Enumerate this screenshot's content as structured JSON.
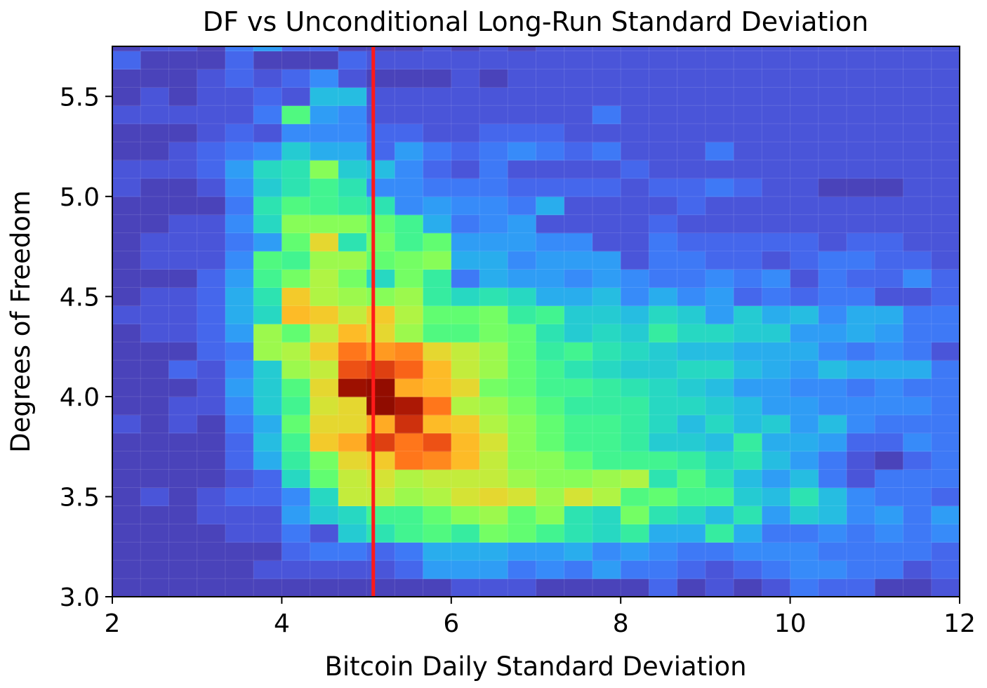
{
  "chart_data": {
    "type": "heatmap",
    "title": "DF vs Unconditional Long-Run Standard Deviation",
    "xlabel": "Bitcoin Daily Standard Deviation",
    "ylabel": "Degrees of Freedom",
    "xlim": [
      2,
      12
    ],
    "ylim": [
      3.0,
      5.75
    ],
    "x_bins": {
      "start": 2,
      "width": 0.333333,
      "count": 30
    },
    "y_bins": {
      "start": 3.0,
      "width": 0.090909,
      "count": 31
    },
    "xticks": [
      "2",
      "4",
      "6",
      "8",
      "10",
      "12"
    ],
    "yticks": [
      "3.0",
      "3.5",
      "4.0",
      "4.5",
      "5.0",
      "5.5"
    ],
    "reference_line": {
      "x": 5.08,
      "color": "#ff1a1a"
    },
    "colormap": "turbo",
    "grid": true,
    "density": [
      [
        0,
        0,
        0,
        0,
        0,
        0,
        0,
        0,
        0,
        0,
        0,
        0,
        1,
        1,
        1,
        0,
        0,
        0,
        0,
        2,
        0,
        1,
        0,
        1,
        3,
        2,
        2,
        0,
        0,
        1
      ],
      [
        0,
        0,
        0,
        0,
        0,
        1,
        1,
        1,
        1,
        1,
        2,
        5,
        5,
        5,
        3,
        4,
        3,
        5,
        3,
        3,
        2,
        1,
        2,
        3,
        4,
        4,
        3,
        3,
        1,
        2
      ],
      [
        0,
        0,
        0,
        0,
        0,
        0,
        2,
        3,
        3,
        2,
        3,
        6,
        6,
        6,
        5,
        5,
        6,
        4,
        5,
        4,
        3,
        3,
        4,
        4,
        4,
        3,
        3,
        3,
        3,
        2
      ],
      [
        0,
        0,
        0,
        0,
        1,
        1,
        3,
        1,
        8,
        10,
        12,
        13,
        11,
        15,
        14,
        12,
        10,
        9,
        11,
        6,
        6,
        11,
        6,
        3,
        3,
        4,
        3,
        4,
        3,
        4
      ],
      [
        0,
        0,
        0,
        1,
        1,
        1,
        5,
        8,
        9,
        12,
        12,
        14,
        16,
        17,
        14,
        16,
        10,
        9,
        15,
        10,
        9,
        7,
        10,
        5,
        8,
        7,
        4,
        5,
        3,
        5
      ],
      [
        0,
        1,
        0,
        1,
        2,
        2,
        4,
        9,
        19,
        19,
        17,
        18,
        20,
        21,
        20,
        17,
        20,
        18,
        13,
        14,
        12,
        12,
        8,
        7,
        10,
        7,
        4,
        3,
        3,
        2
      ],
      [
        0,
        0,
        0,
        0,
        1,
        2,
        9,
        14,
        19,
        20,
        18,
        19,
        19,
        19,
        17,
        16,
        16,
        17,
        18,
        10,
        13,
        10,
        7,
        5,
        7,
        3,
        1,
        3,
        3,
        3
      ],
      [
        0,
        0,
        0,
        0,
        2,
        6,
        11,
        15,
        21,
        22,
        27,
        26,
        23,
        19,
        16,
        16,
        14,
        12,
        12,
        12,
        11,
        9,
        10,
        7,
        5,
        3,
        1,
        0,
        2,
        3
      ],
      [
        0,
        0,
        0,
        0,
        2,
        7,
        12,
        22,
        24,
        30,
        27,
        29,
        23,
        20,
        16,
        14,
        12,
        12,
        11,
        8,
        8,
        7,
        11,
        6,
        6,
        5,
        2,
        2,
        4,
        3
      ],
      [
        1,
        0,
        1,
        0,
        3,
        6,
        14,
        21,
        21,
        24,
        31,
        23,
        22,
        18,
        16,
        14,
        12,
        12,
        11,
        9,
        7,
        9,
        7,
        8,
        5,
        7,
        4,
        3,
        3,
        3
      ],
      [
        0,
        0,
        1,
        1,
        4,
        8,
        12,
        20,
        21,
        36,
        33,
        27,
        18,
        17,
        15,
        13,
        11,
        11,
        11,
        9,
        9,
        8,
        7,
        5,
        5,
        4,
        4,
        4,
        4,
        3
      ],
      [
        0,
        0,
        0,
        1,
        5,
        8,
        13,
        21,
        34,
        35,
        24,
        23,
        21,
        15,
        14,
        12,
        12,
        11,
        10,
        9,
        8,
        7,
        5,
        5,
        4,
        4,
        3,
        4,
        3,
        3
      ],
      [
        0,
        0,
        2,
        1,
        4,
        8,
        17,
        19,
        29,
        30,
        28,
        23,
        19,
        17,
        14,
        12,
        10,
        9,
        8,
        8,
        9,
        9,
        7,
        6,
        5,
        7,
        6,
        6,
        6,
        3
      ],
      [
        0,
        0,
        0,
        2,
        3,
        17,
        18,
        22,
        27,
        25,
        26,
        21,
        19,
        17,
        14,
        11,
        12,
        10,
        9,
        8,
        7,
        7,
        6,
        6,
        6,
        4,
        3,
        4,
        3,
        1
      ],
      [
        0,
        1,
        1,
        2,
        5,
        17,
        14,
        19,
        23,
        21,
        17,
        13,
        13,
        15,
        14,
        10,
        8,
        9,
        8,
        11,
        9,
        9,
        8,
        8,
        5,
        5,
        6,
        5,
        3,
        3
      ],
      [
        1,
        1,
        1,
        2,
        6,
        9,
        23,
        22,
        19,
        22,
        18,
        14,
        14,
        15,
        11,
        12,
        8,
        8,
        7,
        9,
        8,
        5,
        8,
        6,
        7,
        4,
        6,
        6,
        3,
        3
      ],
      [
        0,
        1,
        1,
        2,
        6,
        10,
        22,
        18,
        17,
        16,
        17,
        11,
        9,
        10,
        9,
        6,
        6,
        7,
        4,
        6,
        4,
        5,
        2,
        3,
        2,
        3,
        3,
        1,
        1,
        2
      ],
      [
        0,
        0,
        0,
        2,
        5,
        12,
        15,
        18,
        15,
        9,
        15,
        11,
        3,
        6,
        5,
        5,
        4,
        5,
        4,
        3,
        3,
        4,
        3,
        4,
        1,
        3,
        2,
        2,
        4,
        2
      ],
      [
        0,
        1,
        1,
        1,
        4,
        13,
        12,
        17,
        17,
        14,
        15,
        16,
        6,
        6,
        4,
        5,
        5,
        5,
        1,
        3,
        3,
        2,
        2,
        1,
        2,
        3,
        3,
        2,
        2,
        1
      ],
      [
        0,
        1,
        1,
        1,
        3,
        5,
        14,
        21,
        10,
        15,
        12,
        14,
        5,
        5,
        5,
        4,
        4,
        1,
        1,
        3,
        2,
        2,
        2,
        2,
        2,
        1,
        2,
        2,
        1,
        1
      ],
      [
        0,
        0,
        1,
        1,
        4,
        9,
        16,
        16,
        16,
        14,
        12,
        6,
        3,
        4,
        5,
        1,
        1,
        1,
        1,
        2,
        1,
        1,
        1,
        1,
        1,
        1,
        1,
        1,
        1,
        1
      ],
      [
        0,
        0,
        0,
        0,
        3,
        10,
        13,
        12,
        11,
        10,
        4,
        5,
        4,
        4,
        3,
        6,
        1,
        1,
        1,
        1,
        2,
        1,
        1,
        1,
        1,
        1,
        1,
        1,
        1,
        1
      ],
      [
        1,
        0,
        0,
        1,
        4,
        8,
        10,
        12,
        10,
        4,
        4,
        3,
        3,
        3,
        2,
        2,
        2,
        2,
        1,
        2,
        2,
        3,
        2,
        1,
        1,
        0,
        0,
        0,
        1,
        1
      ],
      [
        1,
        1,
        1,
        2,
        5,
        9,
        10,
        16,
        8,
        7,
        4,
        2,
        1,
        3,
        1,
        1,
        1,
        1,
        2,
        1,
        1,
        1,
        1,
        1,
        1,
        1,
        1,
        1,
        1,
        1
      ],
      [
        0,
        0,
        1,
        2,
        3,
        4,
        8,
        6,
        6,
        2,
        5,
        3,
        2,
        3,
        4,
        3,
        2,
        3,
        1,
        1,
        1,
        3,
        1,
        1,
        1,
        1,
        1,
        1,
        1,
        1
      ],
      [
        0,
        0,
        0,
        1,
        2,
        1,
        4,
        4,
        4,
        2,
        2,
        1,
        1,
        2,
        2,
        2,
        1,
        1,
        1,
        1,
        1,
        1,
        1,
        1,
        1,
        1,
        1,
        1,
        1,
        1
      ],
      [
        1,
        1,
        1,
        1,
        1,
        3,
        13,
        5,
        4,
        1,
        1,
        1,
        1,
        1,
        1,
        1,
        1,
        3,
        1,
        1,
        1,
        1,
        1,
        1,
        1,
        1,
        1,
        1,
        1,
        1
      ],
      [
        0,
        1,
        0,
        1,
        1,
        2,
        1,
        7,
        7,
        1,
        1,
        1,
        1,
        1,
        1,
        1,
        1,
        1,
        1,
        1,
        1,
        1,
        1,
        1,
        1,
        1,
        1,
        1,
        1,
        1
      ],
      [
        0,
        0,
        0,
        1,
        2,
        1,
        2,
        4,
        1,
        0,
        0,
        0,
        1,
        0,
        1,
        1,
        1,
        1,
        1,
        1,
        1,
        1,
        1,
        1,
        1,
        1,
        1,
        1,
        1,
        1
      ],
      [
        2,
        0,
        0,
        0,
        2,
        0,
        0,
        0,
        2,
        1,
        1,
        1,
        1,
        1,
        1,
        1,
        1,
        1,
        1,
        1,
        1,
        1,
        1,
        1,
        1,
        1,
        1,
        1,
        1,
        1
      ],
      [
        0,
        1,
        1,
        0,
        3,
        5,
        2,
        2,
        0,
        0,
        0,
        1,
        0,
        1,
        0,
        1,
        1,
        1,
        1,
        1,
        1,
        1,
        1,
        1,
        1,
        1,
        1,
        1,
        1,
        1
      ]
    ],
    "density_max": 36
  }
}
